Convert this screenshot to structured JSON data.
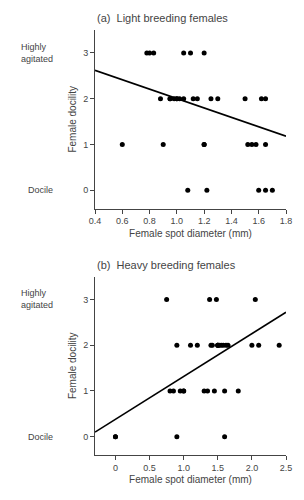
{
  "chart_data": [
    {
      "type": "scatter",
      "title": "(a)  Light breeding females",
      "xlabel": "Female spot diameter (mm)",
      "ylabel": "Female docility",
      "xlim": [
        0.4,
        1.8
      ],
      "ylim": [
        -0.4,
        3.5
      ],
      "xticks": [
        0.4,
        0.6,
        0.8,
        {
          "value": 1.0,
          "label": "1.0"
        },
        1.2,
        1.4,
        1.6,
        1.8
      ],
      "yticks": [
        0,
        1,
        2,
        3
      ],
      "grid": false,
      "annotations": [
        {
          "text": "Highly\nagitated",
          "y": 3.0
        },
        {
          "text": "Docile",
          "y": 0.0
        }
      ],
      "series": [
        {
          "type": "scatter",
          "marker": "circle",
          "color": "#000000",
          "x": [
            0.6,
            0.78,
            0.8,
            0.83,
            0.88,
            0.9,
            0.95,
            0.95,
            0.98,
            1.0,
            1.0,
            1.02,
            1.05,
            1.05,
            1.08,
            1.1,
            1.12,
            1.15,
            1.2,
            1.2,
            1.2,
            1.22,
            1.25,
            1.3,
            1.5,
            1.52,
            1.55,
            1.58,
            1.6,
            1.62,
            1.65,
            1.65,
            1.65,
            1.7
          ],
          "values": [
            1,
            3,
            3,
            3,
            2,
            1,
            2,
            2,
            2,
            2,
            2,
            2,
            2,
            3,
            0,
            3,
            2,
            2,
            1,
            1,
            3,
            0,
            2,
            2,
            2,
            1,
            1,
            1,
            0,
            2,
            2,
            0,
            1,
            0
          ]
        },
        {
          "type": "line",
          "line_style": "solid",
          "color": "#000000",
          "x": [
            0.4,
            1.8
          ],
          "values": [
            2.62,
            1.18
          ]
        }
      ]
    },
    {
      "type": "scatter",
      "title": "(b)  Heavy breeding females",
      "xlabel": "Female spot diameter (mm)",
      "ylabel": "Female docility",
      "xlim": [
        -0.3,
        2.5
      ],
      "ylim": [
        -0.4,
        3.5
      ],
      "xticks": [
        0,
        0.5,
        {
          "value": 1.0,
          "label": "1.0"
        },
        1.5,
        {
          "value": 2.0,
          "label": "2.0"
        },
        2.5
      ],
      "yticks": [
        0,
        1,
        2,
        3
      ],
      "grid": false,
      "annotations": [
        {
          "text": "Highly\nagitated",
          "y": 3.0
        },
        {
          "text": "Docile",
          "y": 0.0
        }
      ],
      "series": [
        {
          "type": "scatter",
          "marker": "circle",
          "color": "#000000",
          "x": [
            0.0,
            0.0,
            0.75,
            0.8,
            0.85,
            0.9,
            0.9,
            0.95,
            1.0,
            1.0,
            1.1,
            1.2,
            1.3,
            1.35,
            1.38,
            1.4,
            1.42,
            1.45,
            1.48,
            1.5,
            1.5,
            1.5,
            1.52,
            1.55,
            1.58,
            1.6,
            1.6,
            1.62,
            1.65,
            1.8,
            2.0,
            2.05,
            2.1,
            2.4
          ],
          "values": [
            0,
            0,
            3,
            1,
            1,
            2,
            0,
            1,
            1,
            1,
            2,
            2,
            1,
            1,
            3,
            2,
            2,
            1,
            3,
            2,
            2,
            2,
            2,
            2,
            2,
            0,
            1,
            2,
            2,
            1,
            2,
            3,
            2,
            2
          ]
        },
        {
          "type": "line",
          "line_style": "solid",
          "color": "#000000",
          "x": [
            -0.3,
            2.5
          ],
          "values": [
            0.1,
            2.72
          ]
        }
      ]
    }
  ]
}
